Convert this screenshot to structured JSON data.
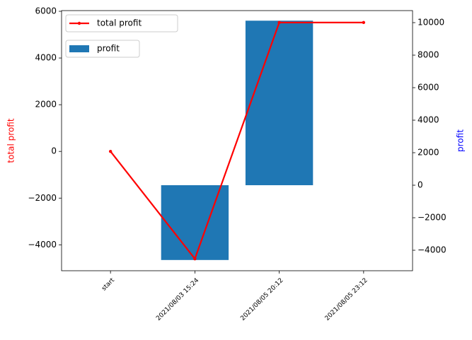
{
  "chart_data": {
    "type": "bar-line",
    "categories": [
      "start",
      "2021/08/03 15:24",
      "2021/08/05 20:12",
      "2021/08/05 23:12"
    ],
    "series": [
      {
        "name": "total profit",
        "type": "line",
        "color": "#ff0000",
        "axis": "y",
        "values": [
          0,
          -4600,
          5520,
          5520
        ]
      },
      {
        "name": "profit",
        "type": "bar",
        "color": "#1f77b4",
        "axis": "y2",
        "values": [
          0,
          -4600,
          10120,
          0
        ]
      }
    ],
    "ylabel": "total profit",
    "ylabel_color": "#ff0000",
    "y2label": "profit",
    "y2label_color": "#0000ff",
    "ylim": [
      -5110,
      6030
    ],
    "yticks": [
      {
        "value": -4000,
        "label": "−4000"
      },
      {
        "value": -2000,
        "label": "−2000"
      },
      0,
      2000,
      4000,
      6000
    ],
    "y2lim": [
      -5260,
      10740
    ],
    "y2ticks": [
      {
        "value": -4000,
        "label": "−4000"
      },
      {
        "value": -2000,
        "label": "−2000"
      },
      0,
      2000,
      4000,
      6000,
      8000,
      10000
    ],
    "legend": "upper left"
  }
}
